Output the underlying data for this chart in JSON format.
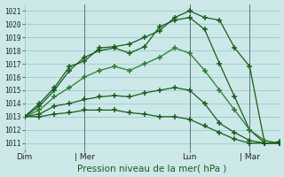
{
  "title": "Pression niveau de la mer( hPa )",
  "bg_color": "#cce8e8",
  "grid_color": "#99cccc",
  "line_dark": "#1a5c1a",
  "line_mid": "#2d7a2d",
  "ylim": [
    1010.5,
    1021.5
  ],
  "yticks": [
    1011,
    1012,
    1013,
    1014,
    1015,
    1016,
    1017,
    1018,
    1019,
    1020,
    1021
  ],
  "xticklabels": [
    "Dim",
    "| Mer",
    "Lun",
    "| Mar"
  ],
  "xtick_positions": [
    0,
    4,
    11,
    15
  ],
  "series": [
    [
      1013.0,
      1014.0,
      1015.2,
      1016.8,
      1017.2,
      1018.2,
      1018.3,
      1018.5,
      1019.0,
      1019.5,
      1020.5,
      1021.0,
      1020.5,
      1020.3,
      1018.2,
      1016.8,
      1011.0,
      1011.0
    ],
    [
      1013.0,
      1013.8,
      1015.0,
      1016.5,
      1017.5,
      1018.0,
      1018.2,
      1017.8,
      1018.3,
      1019.8,
      1020.3,
      1020.5,
      1019.6,
      1017.0,
      1014.5,
      1012.0,
      1011.0,
      1011.1
    ],
    [
      1013.0,
      1013.5,
      1014.5,
      1015.2,
      1016.0,
      1016.5,
      1016.8,
      1016.5,
      1017.0,
      1017.5,
      1018.2,
      1017.8,
      1016.5,
      1015.0,
      1013.5,
      1012.0,
      1011.2,
      1011.0
    ],
    [
      1013.0,
      1013.2,
      1013.8,
      1014.0,
      1014.3,
      1014.5,
      1014.6,
      1014.5,
      1014.8,
      1015.0,
      1015.2,
      1015.0,
      1014.0,
      1012.5,
      1011.8,
      1011.2,
      1011.0,
      1011.0
    ],
    [
      1013.0,
      1013.0,
      1013.2,
      1013.3,
      1013.5,
      1013.5,
      1013.5,
      1013.3,
      1013.2,
      1013.0,
      1013.0,
      1012.8,
      1012.3,
      1011.8,
      1011.3,
      1011.0,
      1011.0,
      1011.0
    ]
  ],
  "vline_positions": [
    4,
    11,
    15
  ],
  "n_points": 18,
  "xlim": [
    0,
    17
  ]
}
